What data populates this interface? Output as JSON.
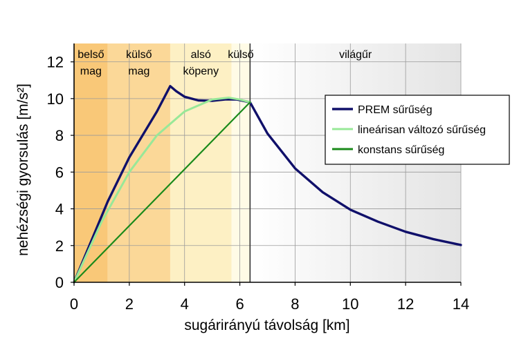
{
  "chart_data": {
    "type": "line",
    "xlabel": "sugárirányú távolság [km]",
    "ylabel": "nehézségi gyorsulás [m/s²]",
    "xlim": [
      0,
      14
    ],
    "ylim": [
      0,
      13
    ],
    "xticks": [
      0,
      2,
      4,
      6,
      8,
      10,
      12,
      14
    ],
    "yticks": [
      0,
      2,
      4,
      6,
      8,
      10,
      12
    ],
    "grid": true,
    "legend_position": "right",
    "regions": [
      {
        "lines": [
          "belső",
          "mag"
        ],
        "x0": 0,
        "x1": 1.22,
        "color": "#f9c878"
      },
      {
        "lines": [
          "külső",
          "mag"
        ],
        "x0": 1.22,
        "x1": 3.48,
        "color": "#fbd898"
      },
      {
        "lines": [
          "alsó",
          "köpeny"
        ],
        "x0": 3.48,
        "x1": 5.7,
        "color": "#fdf0c4"
      },
      {
        "lines": [
          "külső"
        ],
        "x0": 5.7,
        "x1": 6.37,
        "color": "#fffbe6"
      },
      {
        "lines": [
          "világűr"
        ],
        "x0": 6.37,
        "x1": 14,
        "color": "gradient"
      }
    ],
    "boundary_x": 6.37,
    "series": [
      {
        "name": "PREM sűrűség",
        "color": "#10106a",
        "x": [
          0,
          1.22,
          2.0,
          3.0,
          3.48,
          3.7,
          4.0,
          4.5,
          5.0,
          5.5,
          5.9,
          6.37,
          7.0,
          8.0,
          9.0,
          10.0,
          11.0,
          12.0,
          13.0,
          14.0
        ],
        "y": [
          0,
          4.4,
          6.8,
          9.3,
          10.68,
          10.4,
          10.1,
          9.9,
          9.88,
          9.96,
          9.95,
          9.8,
          8.1,
          6.2,
          4.9,
          3.95,
          3.3,
          2.75,
          2.35,
          2.03
        ]
      },
      {
        "name": "lineárisan változó sűrűség",
        "color": "#98e898",
        "x": [
          0,
          1.0,
          2.0,
          3.0,
          4.0,
          5.0,
          5.6,
          6.0,
          6.37
        ],
        "y": [
          0,
          3.3,
          6.0,
          8.0,
          9.3,
          9.95,
          10.05,
          9.95,
          9.8
        ]
      },
      {
        "name": "konstans sűrűség",
        "color": "#1a8a1a",
        "x": [
          0,
          6.37
        ],
        "y": [
          0,
          9.8
        ]
      }
    ]
  }
}
